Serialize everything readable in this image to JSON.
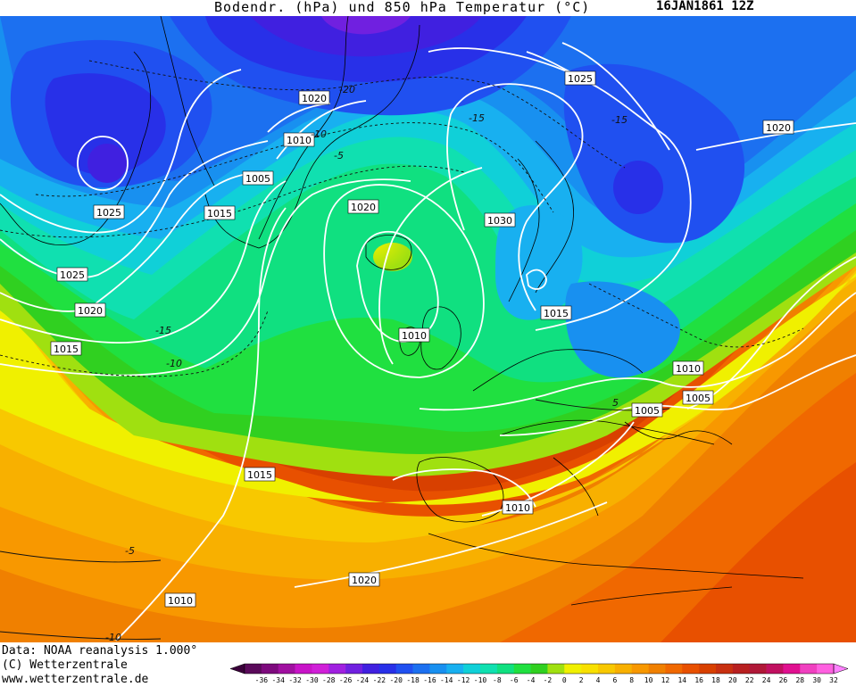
{
  "header": {
    "title": "Bodendr. (hPa) und 850 hPa Temperatur (°C)",
    "datestamp": "16JAN1861 12Z"
  },
  "footer": {
    "data_source": "Data: NOAA reanalysis 1.000°",
    "copyright": "(C) Wetterzentrale",
    "url": "www.wetterzentrale.de"
  },
  "colorbar": {
    "ticks": [
      "-36",
      "-34",
      "-32",
      "-30",
      "-28",
      "-26",
      "-24",
      "-22",
      "-20",
      "-18",
      "-16",
      "-14",
      "-12",
      "-10",
      "-8",
      "-6",
      "-4",
      "-2",
      "0",
      "2",
      "4",
      "6",
      "8",
      "10",
      "12",
      "14",
      "16",
      "18",
      "20",
      "22",
      "24",
      "26",
      "28",
      "30",
      "32"
    ],
    "colors": [
      "#5a0a5a",
      "#7d0a7d",
      "#a010a0",
      "#c814c8",
      "#d020d8",
      "#a020e0",
      "#7020e0",
      "#4020e0",
      "#2830e8",
      "#2050f0",
      "#1c70f0",
      "#1890f0",
      "#18b0f0",
      "#10d0d8",
      "#10e0b0",
      "#10e080",
      "#20e040",
      "#30d020",
      "#a0e010",
      "#f0f000",
      "#f8e000",
      "#f8c800",
      "#f8b000",
      "#f89800",
      "#f08000",
      "#f06800",
      "#e85000",
      "#d84000",
      "#c83010",
      "#b82020",
      "#b01838",
      "#c01060",
      "#e01090",
      "#f040c0",
      "#ff60e0"
    ],
    "under_color": "#3a003a",
    "over_color": "#ff80ff"
  },
  "isobar_labels": [
    "1020",
    "1025",
    "1020",
    "1010",
    "1005",
    "1025",
    "1015",
    "1020",
    "1030",
    "1025",
    "1020",
    "1015",
    "1010",
    "1015",
    "1010",
    "1005",
    "1005",
    "1015",
    "1010",
    "1020",
    "1010"
  ],
  "isotherm_labels": [
    "-20",
    "-15",
    "-15",
    "-10",
    "-10",
    "-5",
    "-5",
    "-10",
    "-15",
    "5"
  ]
}
